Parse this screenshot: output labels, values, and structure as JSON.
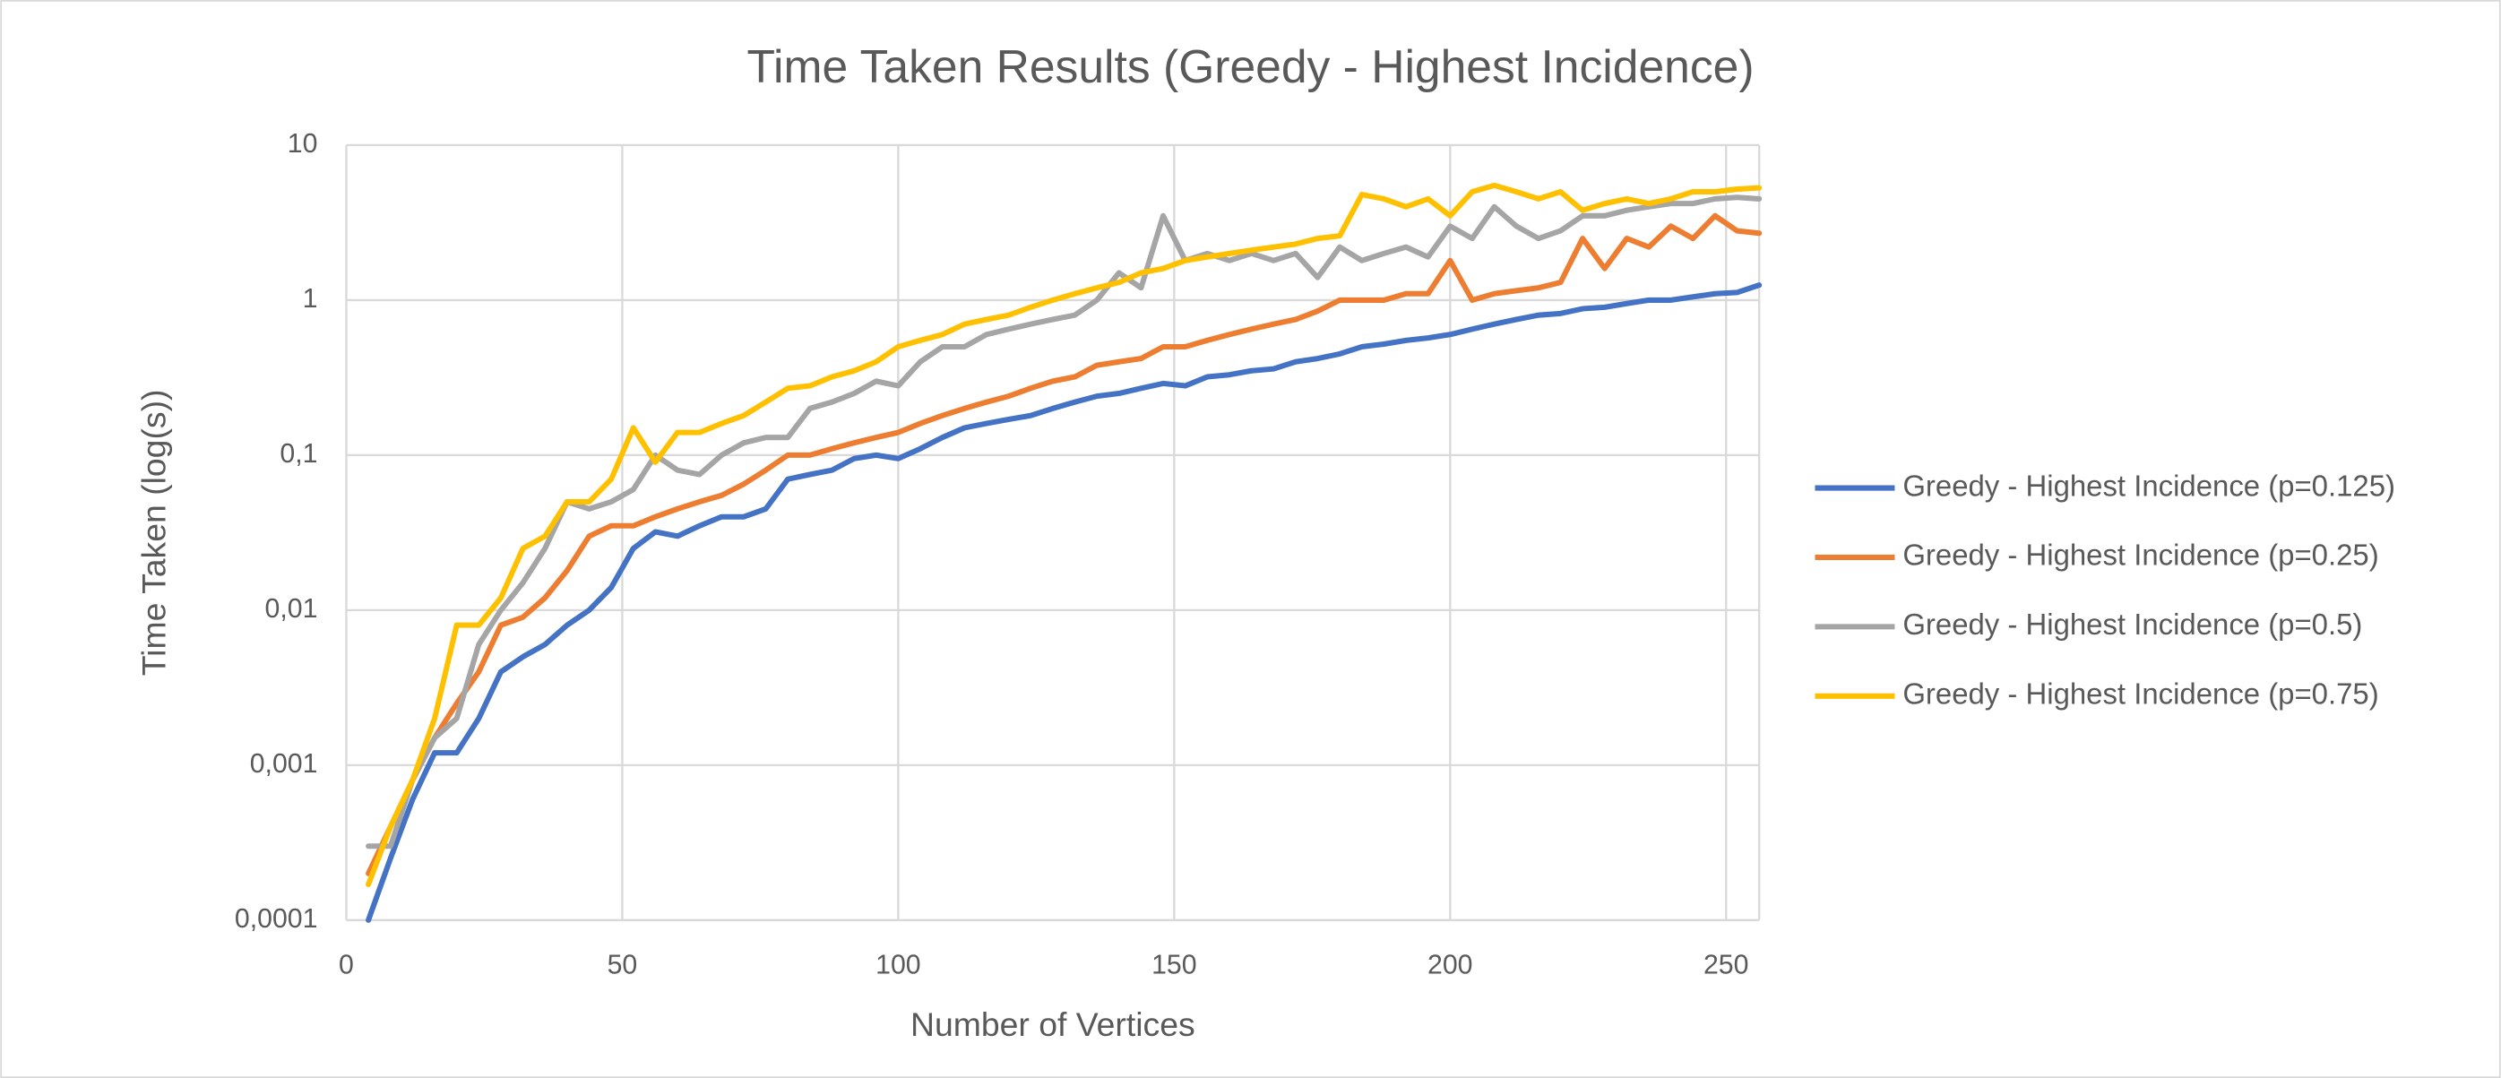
{
  "chart_data": {
    "type": "line",
    "title": "Time Taken Results (Greedy - Highest Incidence)",
    "x_label": "Number of Vertices",
    "y_label": "Time Taken (log(s))",
    "log_y": true,
    "grid": true,
    "legend_position": "right",
    "xlim": [
      0,
      256
    ],
    "xticks": [
      0,
      50,
      100,
      150,
      200,
      250
    ],
    "ylim": [
      0.0001,
      10
    ],
    "yticks": [
      {
        "value": 0.0001,
        "label": "0,0001"
      },
      {
        "value": 0.001,
        "label": "0,001"
      },
      {
        "value": 0.01,
        "label": "0,01"
      },
      {
        "value": 0.1,
        "label": "0,1"
      },
      1,
      10
    ],
    "x": [
      4,
      8,
      12,
      16,
      20,
      24,
      28,
      32,
      36,
      40,
      44,
      48,
      52,
      56,
      60,
      64,
      68,
      72,
      76,
      80,
      84,
      88,
      92,
      96,
      100,
      104,
      108,
      112,
      116,
      120,
      124,
      128,
      132,
      136,
      140,
      144,
      148,
      152,
      156,
      160,
      164,
      168,
      172,
      176,
      180,
      184,
      188,
      192,
      196,
      200,
      204,
      208,
      212,
      216,
      220,
      224,
      228,
      232,
      236,
      240,
      244,
      248,
      252,
      256
    ],
    "series": [
      {
        "name": "Greedy - Highest Incidence (p=0.125)",
        "color": "#4472c4",
        "values": [
          0.0001,
          0.00025,
          0.0006,
          0.0012,
          0.0012,
          0.002,
          0.004,
          0.005,
          0.006,
          0.008,
          0.01,
          0.014,
          0.025,
          0.032,
          0.03,
          0.035,
          0.04,
          0.04,
          0.045,
          0.07,
          0.075,
          0.08,
          0.095,
          0.1,
          0.095,
          0.11,
          0.13,
          0.15,
          0.16,
          0.17,
          0.18,
          0.2,
          0.22,
          0.24,
          0.25,
          0.27,
          0.29,
          0.28,
          0.32,
          0.33,
          0.35,
          0.36,
          0.4,
          0.42,
          0.45,
          0.5,
          0.52,
          0.55,
          0.57,
          0.6,
          0.65,
          0.7,
          0.75,
          0.8,
          0.82,
          0.88,
          0.9,
          0.95,
          1.0,
          1.0,
          1.05,
          1.1,
          1.12,
          1.25
        ]
      },
      {
        "name": "Greedy - Highest Incidence (p=0.25)",
        "color": "#ed7d31",
        "values": [
          0.0002,
          0.0004,
          0.0008,
          0.0015,
          0.0025,
          0.004,
          0.008,
          0.009,
          0.012,
          0.018,
          0.03,
          0.035,
          0.035,
          0.04,
          0.045,
          0.05,
          0.055,
          0.065,
          0.08,
          0.1,
          0.1,
          0.11,
          0.12,
          0.13,
          0.14,
          0.16,
          0.18,
          0.2,
          0.22,
          0.24,
          0.27,
          0.3,
          0.32,
          0.38,
          0.4,
          0.42,
          0.5,
          0.5,
          0.55,
          0.6,
          0.65,
          0.7,
          0.75,
          0.85,
          1.0,
          1.0,
          1.0,
          1.1,
          1.1,
          1.8,
          1.0,
          1.1,
          1.15,
          1.2,
          1.3,
          2.5,
          1.6,
          2.5,
          2.2,
          3.0,
          2.5,
          3.5,
          2.8,
          2.7
        ]
      },
      {
        "name": "Greedy - Highest Incidence (p=0.5)",
        "color": "#a5a5a5",
        "values": [
          0.0003,
          0.0003,
          0.0008,
          0.0015,
          0.002,
          0.006,
          0.01,
          0.015,
          0.025,
          0.05,
          0.045,
          0.05,
          0.06,
          0.1,
          0.08,
          0.075,
          0.1,
          0.12,
          0.13,
          0.13,
          0.2,
          0.22,
          0.25,
          0.3,
          0.28,
          0.4,
          0.5,
          0.5,
          0.6,
          0.65,
          0.7,
          0.75,
          0.8,
          1.0,
          1.5,
          1.2,
          3.5,
          1.8,
          2.0,
          1.8,
          2.0,
          1.8,
          2.0,
          1.4,
          2.2,
          1.8,
          2.0,
          2.2,
          1.9,
          3.0,
          2.5,
          4.0,
          3.0,
          2.5,
          2.8,
          3.5,
          3.5,
          3.8,
          4.0,
          4.2,
          4.2,
          4.5,
          4.6,
          4.5
        ]
      },
      {
        "name": "Greedy - Highest Incidence (p=0.75)",
        "color": "#ffc000",
        "values": [
          0.00017,
          0.0004,
          0.0008,
          0.002,
          0.008,
          0.008,
          0.012,
          0.025,
          0.03,
          0.05,
          0.05,
          0.07,
          0.15,
          0.09,
          0.14,
          0.14,
          0.16,
          0.18,
          0.22,
          0.27,
          0.28,
          0.32,
          0.35,
          0.4,
          0.5,
          0.55,
          0.6,
          0.7,
          0.75,
          0.8,
          0.9,
          1.0,
          1.1,
          1.2,
          1.3,
          1.5,
          1.6,
          1.8,
          1.9,
          2.0,
          2.1,
          2.2,
          2.3,
          2.5,
          2.6,
          4.8,
          4.5,
          4.0,
          4.5,
          3.5,
          5.0,
          5.5,
          5.0,
          4.5,
          5.0,
          3.8,
          4.2,
          4.5,
          4.2,
          4.5,
          5.0,
          5.0,
          5.2,
          5.3
        ]
      }
    ]
  }
}
